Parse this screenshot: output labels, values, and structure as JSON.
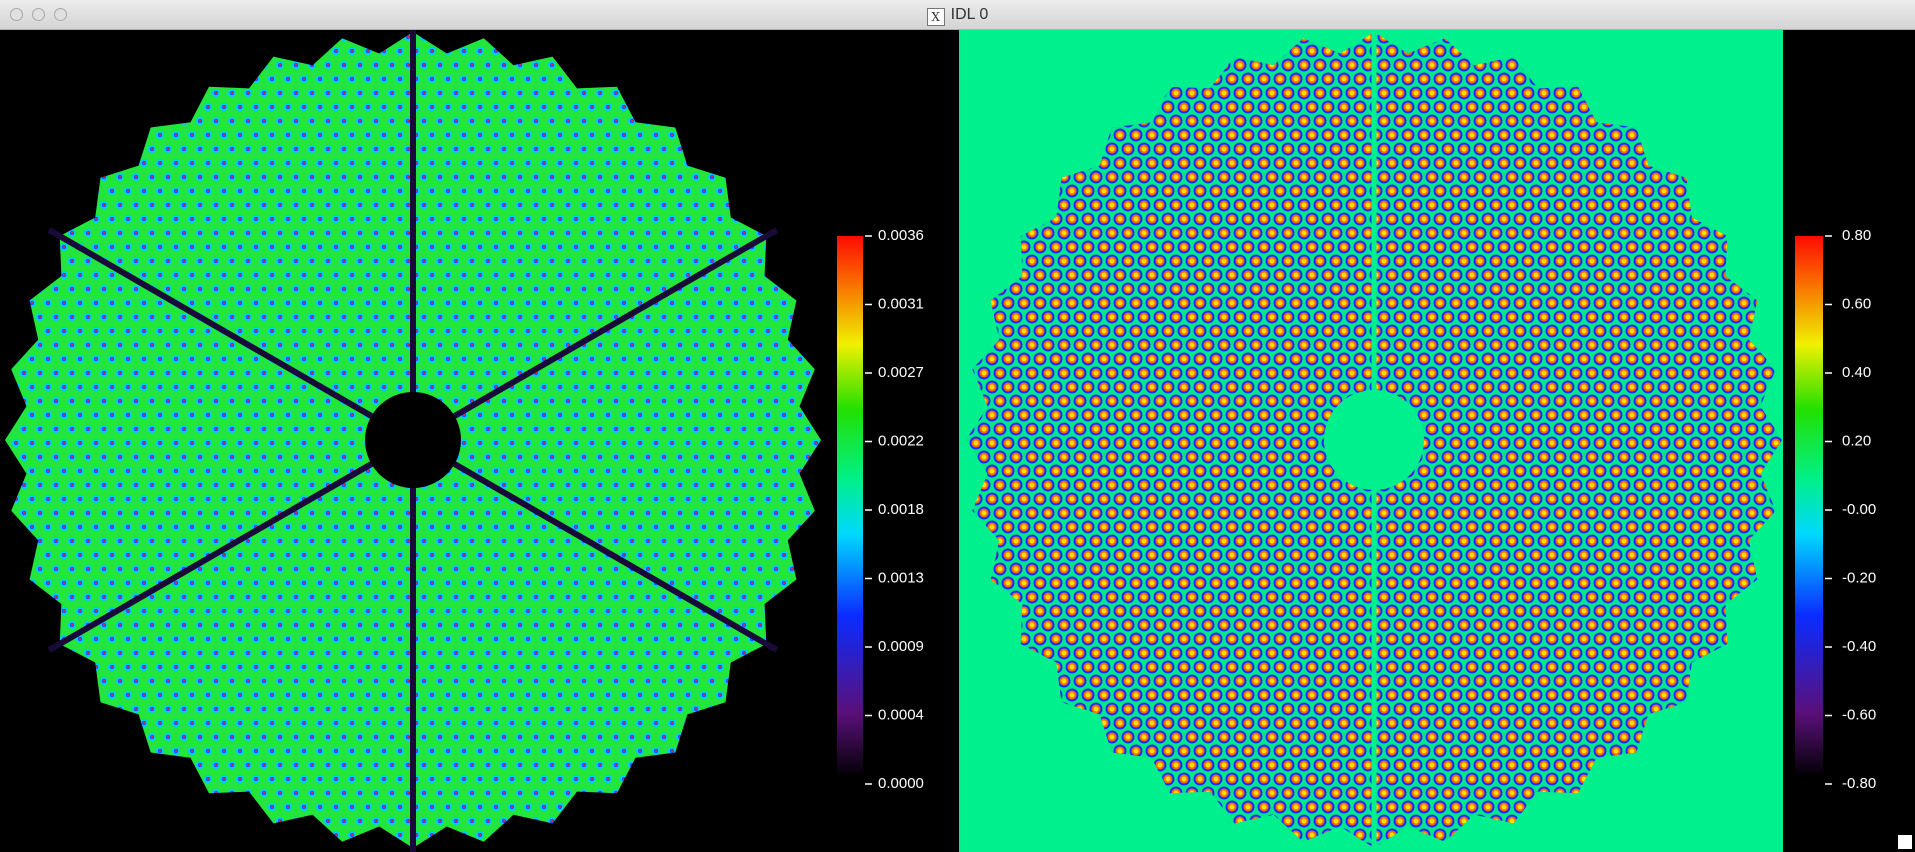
{
  "window": {
    "title": "IDL 0"
  },
  "left_colorbar": {
    "ticks": [
      "0.0036",
      "0.0031",
      "0.0027",
      "0.0022",
      "0.0018",
      "0.0013",
      "0.0009",
      "0.0004",
      "0.0000"
    ]
  },
  "right_colorbar": {
    "ticks": [
      "0.80",
      "0.60",
      "0.40",
      "0.20",
      "-0.00",
      "-0.20",
      "-0.40",
      "-0.60",
      "-0.80"
    ]
  }
}
